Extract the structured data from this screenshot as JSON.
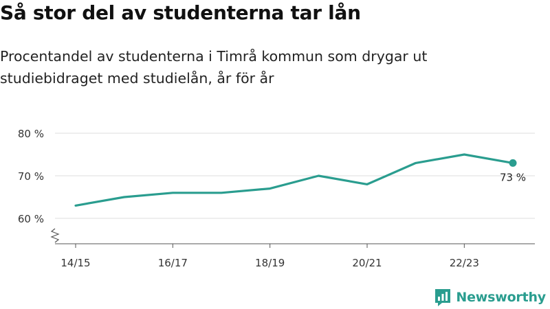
{
  "title": "Så stor del av studenterna tar lån",
  "subtitle": "Procentandel av studenterna i Timrå kommun som drygar ut studiebidraget med studielån, år för år",
  "brand": {
    "name": "Newsworthy",
    "logo_icon": "newsworthy-logo-icon"
  },
  "colors": {
    "line": "#2a9d8f",
    "grid": "#dddddd",
    "axis": "#555555",
    "text": "#333333"
  },
  "chart_data": {
    "type": "line",
    "x": [
      "14/15",
      "15/16",
      "16/17",
      "17/18",
      "18/19",
      "19/20",
      "20/21",
      "21/22",
      "22/23",
      "23/24"
    ],
    "tick_labels": [
      "14/15",
      "",
      "16/17",
      "",
      "18/19",
      "",
      "20/21",
      "",
      "22/23",
      ""
    ],
    "series": [
      {
        "values": [
          63,
          65,
          66,
          66,
          67,
          70,
          68,
          73,
          75,
          73
        ]
      }
    ],
    "y_ticks": [
      60,
      70,
      80
    ],
    "y_tick_labels": [
      "60 %",
      "70 %",
      "80 %"
    ],
    "ylim": [
      54,
      82
    ],
    "y_axis_break": true,
    "end_label": "73 %",
    "grid": true
  }
}
